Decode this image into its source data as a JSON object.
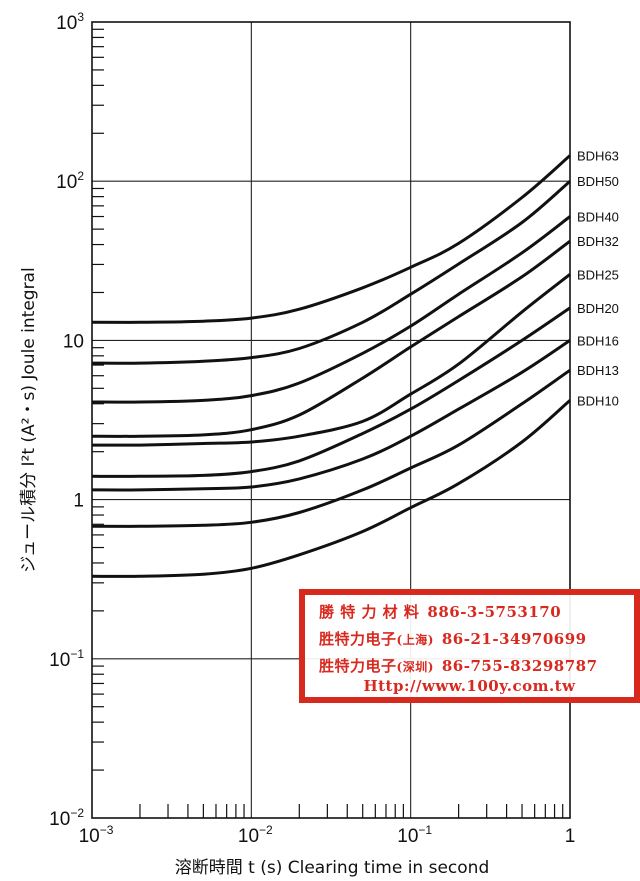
{
  "chart_data": {
    "type": "line",
    "title": "",
    "xlabel": "溶断時間 t (s)  Clearing time in second",
    "ylabel": "ジュール積分 I²t (A²・s)  Joule integral",
    "x_scale": "log",
    "y_scale": "log",
    "xlim": [
      0.001,
      1
    ],
    "ylim": [
      0.01,
      1000
    ],
    "grid": true,
    "legend": "none",
    "x_ticks": [
      {
        "base": "10",
        "exp": "−3",
        "plain": ""
      },
      {
        "base": "10",
        "exp": "−2",
        "plain": ""
      },
      {
        "base": "10",
        "exp": "−1",
        "plain": ""
      },
      {
        "base": "",
        "exp": "",
        "plain": "1"
      }
    ],
    "y_ticks": [
      {
        "base": "10",
        "exp": "−2",
        "plain": ""
      },
      {
        "base": "10",
        "exp": "−1",
        "plain": ""
      },
      {
        "base": "",
        "exp": "",
        "plain": "1"
      },
      {
        "base": "",
        "exp": "",
        "plain": "10"
      },
      {
        "base": "10",
        "exp": "2",
        "plain": ""
      },
      {
        "base": "10",
        "exp": "3",
        "plain": ""
      }
    ],
    "x": [
      0.001,
      0.002,
      0.005,
      0.01,
      0.02,
      0.05,
      0.1,
      0.2,
      0.5,
      1
    ],
    "series": [
      {
        "name": "BDH63",
        "values": [
          13.0,
          13.0,
          13.2,
          13.8,
          15.7,
          21.4,
          28.8,
          40.7,
          79.0,
          145.0
        ]
      },
      {
        "name": "BDH50",
        "values": [
          7.2,
          7.2,
          7.4,
          7.8,
          8.9,
          13.0,
          19.5,
          30.2,
          55.0,
          100.0
        ]
      },
      {
        "name": "BDH40",
        "values": [
          4.1,
          4.1,
          4.2,
          4.5,
          5.4,
          8.3,
          12.3,
          19.5,
          35.5,
          60.0
        ]
      },
      {
        "name": "BDH32",
        "values": [
          2.5,
          2.5,
          2.55,
          2.75,
          3.4,
          5.8,
          9.1,
          14.1,
          25.1,
          42.0
        ]
      },
      {
        "name": "BDH25",
        "values": [
          2.2,
          2.2,
          2.25,
          2.3,
          2.5,
          3.1,
          4.6,
          7.1,
          15.1,
          26.0
        ]
      },
      {
        "name": "BDH20",
        "values": [
          1.4,
          1.4,
          1.42,
          1.5,
          1.75,
          2.6,
          3.7,
          5.6,
          10.0,
          16.0
        ]
      },
      {
        "name": "BDH16",
        "values": [
          1.15,
          1.15,
          1.17,
          1.2,
          1.35,
          1.8,
          2.5,
          3.7,
          6.3,
          10.0
        ]
      },
      {
        "name": "BDH13",
        "values": [
          0.68,
          0.68,
          0.69,
          0.72,
          0.83,
          1.15,
          1.58,
          2.2,
          4.0,
          6.5
        ]
      },
      {
        "name": "BDH10",
        "values": [
          0.33,
          0.33,
          0.34,
          0.37,
          0.45,
          0.63,
          0.89,
          1.26,
          2.3,
          4.2
        ]
      }
    ]
  },
  "watermark": {
    "line1_name": "勝 特 力 材 料",
    "line1_tel": "886-3-5753170",
    "line2_name": "胜特力电子",
    "line2_sub": "(上海)",
    "line2_tel": "86-21-34970699",
    "line3_name": "胜特力电子",
    "line3_sub": "(深圳)",
    "line3_tel": "86-755-83298787",
    "url": "Http://www.100y.com.tw",
    "color": "#d8291f"
  }
}
